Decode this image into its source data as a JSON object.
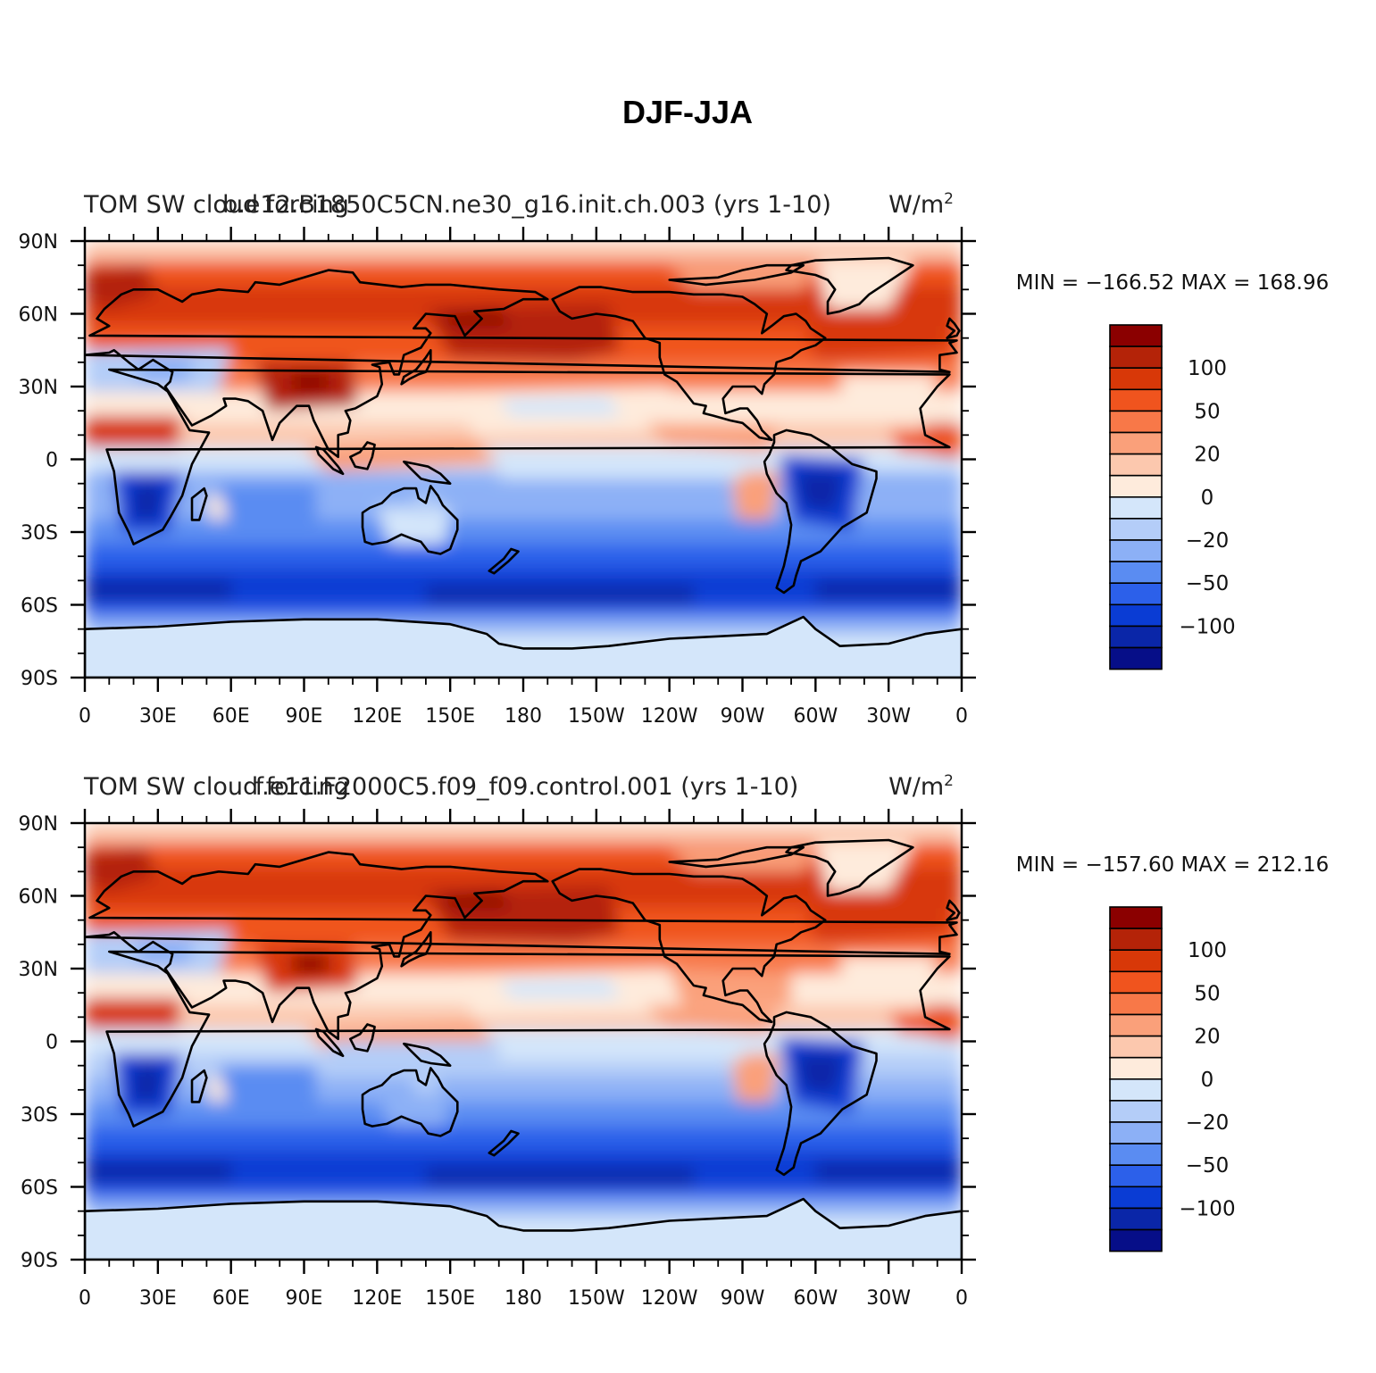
{
  "figure": {
    "title": "DJF-JJA"
  },
  "colors": {
    "levels": [
      "#8b0000",
      "#b42308",
      "#d83808",
      "#f0541e",
      "#f87848",
      "#faa07a",
      "#fcc8ae",
      "#feebdc",
      "#d4e6fa",
      "#b4cdf8",
      "#8cb0f6",
      "#5a8cf2",
      "#2c60ea",
      "#0a3cd4",
      "#0a26a8",
      "#060e88"
    ],
    "coast": "#000000",
    "ice": "#d4e6fa"
  },
  "chart_data": [
    {
      "type": "heatmap",
      "left_title": "TOM SW cloud forcing",
      "center_title": "b.e12.B1850C5CN.ne30_g16.init.ch.003 (yrs 1-10)",
      "units_title": "W/m",
      "units_sup": "2",
      "minmax_label": "MIN = −166.52 MAX = 168.96",
      "min": -166.52,
      "max": 168.96,
      "variant": 0,
      "x_ticks": [
        "0",
        "30E",
        "60E",
        "90E",
        "120E",
        "150E",
        "180",
        "150W",
        "120W",
        "90W",
        "60W",
        "30W",
        "0"
      ],
      "y_ticks": [
        "90N",
        "60N",
        "30N",
        "0",
        "30S",
        "60S",
        "90S"
      ],
      "xlim": [
        0,
        360
      ],
      "ylim": [
        -90,
        90
      ],
      "colorbar_labels": [
        "100",
        "50",
        "20",
        "0",
        "−20",
        "−50",
        "−100"
      ]
    },
    {
      "type": "heatmap",
      "left_title": "TOM SW cloud forcing",
      "center_title": "f.e11.F2000C5.f09_f09.control.001 (yrs 1-10)",
      "units_title": "W/m",
      "units_sup": "2",
      "minmax_label": "MIN = −157.60 MAX = 212.16",
      "min": -157.6,
      "max": 212.16,
      "variant": 1,
      "x_ticks": [
        "0",
        "30E",
        "60E",
        "90E",
        "120E",
        "150E",
        "180",
        "150W",
        "120W",
        "90W",
        "60W",
        "30W",
        "0"
      ],
      "y_ticks": [
        "90N",
        "60N",
        "30N",
        "0",
        "30S",
        "60S",
        "90S"
      ],
      "xlim": [
        0,
        360
      ],
      "ylim": [
        -90,
        90
      ],
      "colorbar_labels": [
        "100",
        "50",
        "20",
        "0",
        "−20",
        "−50",
        "−100"
      ]
    }
  ]
}
